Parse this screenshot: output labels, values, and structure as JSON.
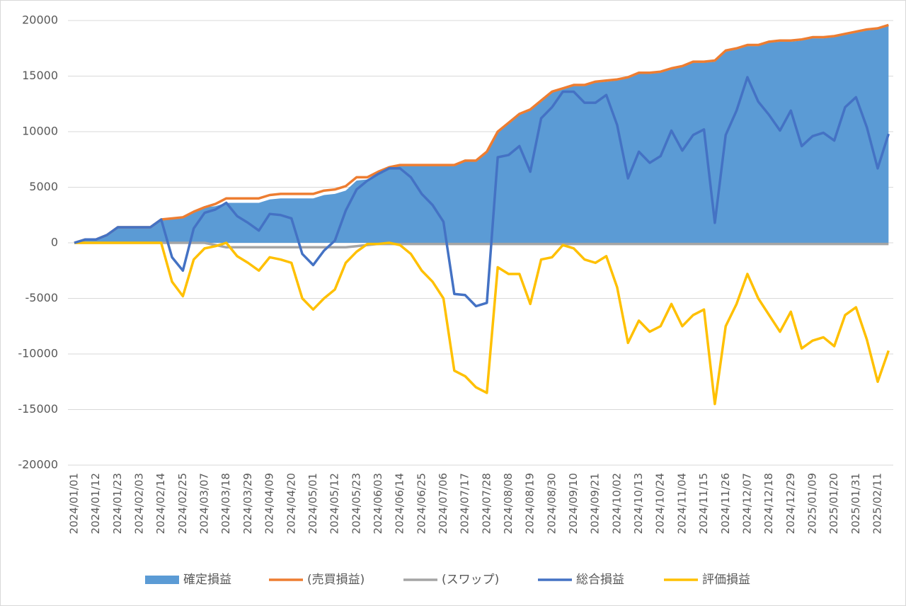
{
  "chart_data": {
    "type": "line",
    "categories": [
      "2024/01/01",
      null,
      "2024/01/12",
      null,
      "2024/01/23",
      null,
      "2024/02/03",
      null,
      "2024/02/14",
      null,
      "2024/02/25",
      null,
      "2024/03/07",
      null,
      "2024/03/18",
      null,
      "2024/03/29",
      null,
      "2024/04/09",
      null,
      "2024/04/20",
      null,
      "2024/05/01",
      null,
      "2024/05/12",
      null,
      "2024/05/23",
      null,
      "2024/06/03",
      null,
      "2024/06/14",
      null,
      "2024/06/25",
      null,
      "2024/07/06",
      null,
      "2024/07/17",
      null,
      "2024/07/28",
      null,
      "2024/08/08",
      null,
      "2024/08/19",
      null,
      "2024/08/30",
      null,
      "2024/09/10",
      null,
      "2024/09/21",
      null,
      "2024/10/02",
      null,
      "2024/10/13",
      null,
      "2024/10/24",
      null,
      "2024/11/04",
      null,
      "2024/11/15",
      null,
      "2024/11/26",
      null,
      "2024/12/07",
      null,
      "2024/12/18",
      null,
      "2024/12/29",
      null,
      "2025/01/09",
      null,
      "2025/01/20",
      null,
      "2025/01/31",
      null,
      "2025/02/11",
      null
    ],
    "series": [
      {
        "name": "確定損益",
        "type": "area",
        "color": "#5b9bd5",
        "values": [
          0,
          300,
          300,
          700,
          1400,
          1400,
          1400,
          1400,
          2100,
          2200,
          2300,
          2800,
          3200,
          3300,
          3600,
          3600,
          3600,
          3600,
          3900,
          4000,
          4000,
          4000,
          4000,
          4300,
          4400,
          4700,
          5600,
          5700,
          6300,
          6700,
          6900,
          6900,
          6900,
          6900,
          6900,
          6900,
          7300,
          7300,
          8100,
          9900,
          10700,
          11500,
          11900,
          12700,
          13500,
          13800,
          14100,
          14100,
          14400,
          14500,
          14600,
          14800,
          15200,
          15200,
          15300,
          15600,
          15800,
          16200,
          16200,
          16300,
          17200,
          17400,
          17700,
          17700,
          18000,
          18100,
          18100,
          18200,
          18400,
          18400,
          18500,
          18700,
          18900,
          19100,
          19200,
          19500
        ]
      },
      {
        "name": "(スワップ)",
        "type": "line",
        "color": "#a5a5a5",
        "values": [
          0,
          0,
          0,
          0,
          0,
          0,
          0,
          0,
          0,
          0,
          0,
          0,
          0,
          -200,
          -400,
          -400,
          -400,
          -400,
          -400,
          -400,
          -400,
          -400,
          -400,
          -400,
          -400,
          -400,
          -300,
          -200,
          -100,
          -100,
          -100,
          -100,
          -100,
          -100,
          -100,
          -100,
          -100,
          -100,
          -100,
          -100,
          -100,
          -100,
          -100,
          -100,
          -100,
          -100,
          -100,
          -100,
          -100,
          -100,
          -100,
          -100,
          -100,
          -100,
          -100,
          -100,
          -100,
          -100,
          -100,
          -100,
          -100,
          -100,
          -100,
          -100,
          -100,
          -100,
          -100,
          -100,
          -100,
          -100,
          -100,
          -100,
          -100,
          -100,
          -100,
          -100
        ]
      },
      {
        "name": "(売買損益)",
        "type": "line",
        "color": "#ed7d31",
        "values": [
          0,
          300,
          300,
          700,
          1400,
          1400,
          1400,
          1400,
          2100,
          2200,
          2300,
          2800,
          3200,
          3500,
          4000,
          4000,
          4000,
          4000,
          4300,
          4400,
          4400,
          4400,
          4400,
          4700,
          4800,
          5100,
          5900,
          5900,
          6400,
          6800,
          7000,
          7000,
          7000,
          7000,
          7000,
          7000,
          7400,
          7400,
          8200,
          10000,
          10800,
          11600,
          12000,
          12800,
          13600,
          13900,
          14200,
          14200,
          14500,
          14600,
          14700,
          14900,
          15300,
          15300,
          15400,
          15700,
          15900,
          16300,
          16300,
          16400,
          17300,
          17500,
          17800,
          17800,
          18100,
          18200,
          18200,
          18300,
          18500,
          18500,
          18600,
          18800,
          19000,
          19200,
          19300,
          19600
        ]
      },
      {
        "name": "評価損益",
        "type": "line",
        "color": "#ffc000",
        "values": [
          0,
          0,
          0,
          0,
          0,
          0,
          0,
          0,
          0,
          -3500,
          -4800,
          -1500,
          -500,
          -300,
          0,
          -1200,
          -1800,
          -2500,
          -1300,
          -1500,
          -1800,
          -5000,
          -6000,
          -5000,
          -4200,
          -1800,
          -800,
          -100,
          -100,
          0,
          -200,
          -1000,
          -2500,
          -3500,
          -5000,
          -11500,
          -12000,
          -13000,
          -13500,
          -2200,
          -2800,
          -2800,
          -5500,
          -1500,
          -1300,
          -200,
          -500,
          -1500,
          -1800,
          -1200,
          -4000,
          -9000,
          -7000,
          -8000,
          -7500,
          -5500,
          -7500,
          -6500,
          -6000,
          -14500,
          -7500,
          -5500,
          -2800,
          -5000,
          -6500,
          -8000,
          -6200,
          -9500,
          -8800,
          -8500,
          -9300,
          -6500,
          -5800,
          -8700,
          -12500,
          -9700
        ]
      },
      {
        "name": "総合損益",
        "type": "line",
        "color": "#4472c4",
        "values": [
          0,
          300,
          300,
          700,
          1400,
          1400,
          1400,
          1400,
          2100,
          -1300,
          -2500,
          1300,
          2700,
          3000,
          3600,
          2400,
          1800,
          1100,
          2600,
          2500,
          2200,
          -1000,
          -2000,
          -700,
          200,
          2900,
          4800,
          5600,
          6200,
          6700,
          6700,
          5900,
          4400,
          3400,
          1900,
          -4600,
          -4700,
          -5700,
          -5400,
          7700,
          7900,
          8700,
          6400,
          11200,
          12200,
          13600,
          13600,
          12600,
          12600,
          13300,
          10600,
          5800,
          8200,
          7200,
          7800,
          10100,
          8300,
          9700,
          10200,
          1800,
          9700,
          11900,
          14900,
          12700,
          11500,
          10100,
          11900,
          8700,
          9600,
          9900,
          9200,
          12200,
          13100,
          10400,
          6700,
          9800
        ]
      }
    ],
    "legend_order": [
      0,
      2,
      1,
      4,
      3
    ],
    "ylim": [
      -20000,
      20000
    ],
    "yticks": [
      -20000,
      -15000,
      -10000,
      -5000,
      0,
      5000,
      10000,
      15000,
      20000
    ],
    "grid": true,
    "legend": "bottom"
  }
}
